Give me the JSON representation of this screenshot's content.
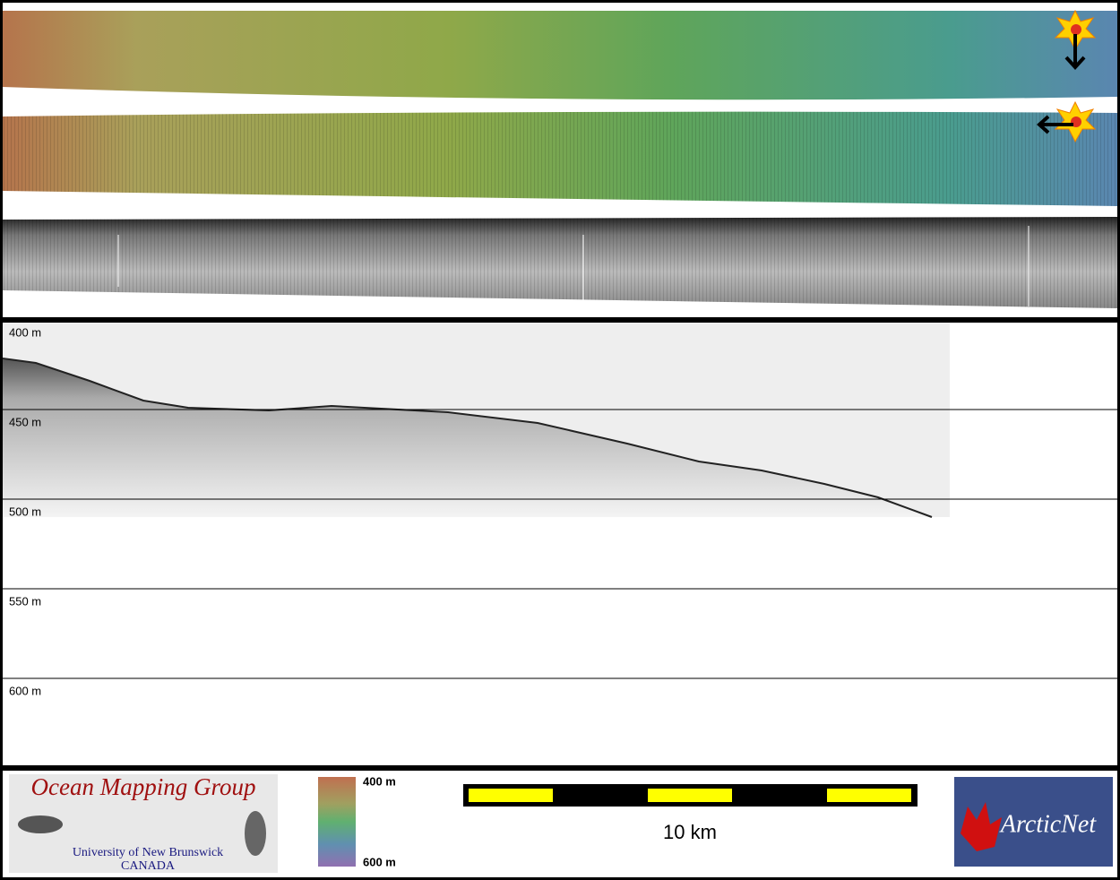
{
  "depth_profile": {
    "ticks": [
      "400 m",
      "450 m",
      "500 m",
      "550 m",
      "600 m"
    ]
  },
  "logos": {
    "ocean_mapping": {
      "title": "Ocean Mapping Group",
      "university": "University of New Brunswick",
      "country": "CANADA"
    },
    "arcticnet": "ArcticNet"
  },
  "colorbar": {
    "top": "400 m",
    "bottom": "600 m"
  },
  "scale_bar": {
    "label": "10 km"
  }
}
